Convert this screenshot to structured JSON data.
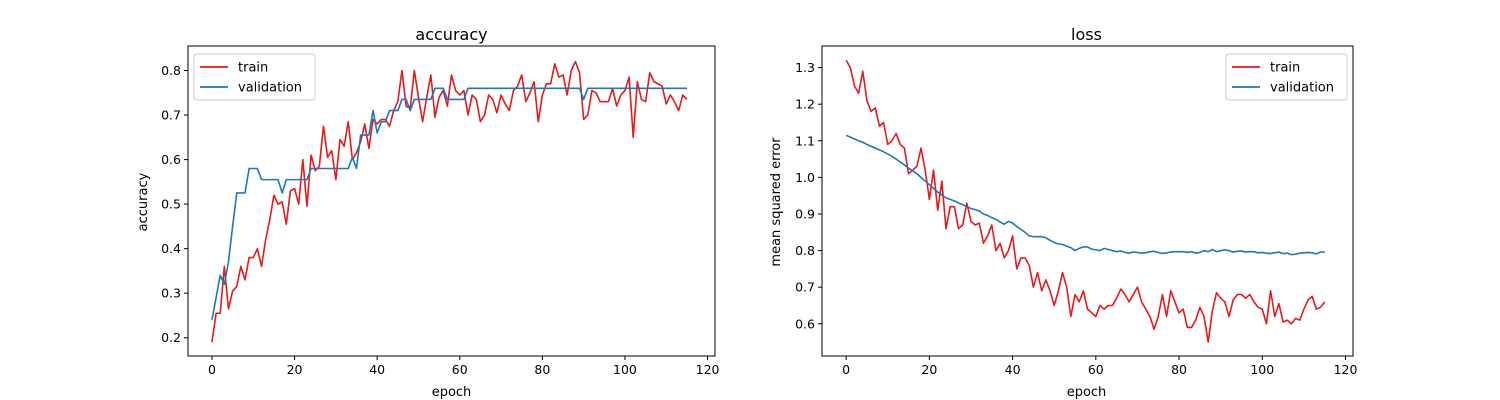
{
  "colors": {
    "train": "#e41a1c",
    "validation": "#1f77b4"
  },
  "chart_data": [
    {
      "type": "line",
      "title": "accuracy",
      "xlabel": "epoch",
      "ylabel": "accuracy",
      "xlim": [
        -5.8,
        121.8
      ],
      "ylim": [
        0.159,
        0.855
      ],
      "xticks": [
        0,
        20,
        40,
        60,
        80,
        100,
        120
      ],
      "yticks": [
        0.2,
        0.3,
        0.4,
        0.5,
        0.6,
        0.7,
        0.8
      ],
      "ytick_labels": [
        "0.2",
        "0.3",
        "0.4",
        "0.5",
        "0.6",
        "0.7",
        "0.8"
      ],
      "legend_position": "upper-left",
      "series": [
        {
          "name": "train",
          "color": "#e41a1c",
          "values": [
            0.19,
            0.255,
            0.255,
            0.36,
            0.265,
            0.305,
            0.315,
            0.36,
            0.33,
            0.38,
            0.38,
            0.4,
            0.36,
            0.42,
            0.465,
            0.52,
            0.5,
            0.505,
            0.455,
            0.53,
            0.535,
            0.5,
            0.6,
            0.495,
            0.61,
            0.575,
            0.585,
            0.675,
            0.605,
            0.62,
            0.555,
            0.645,
            0.63,
            0.685,
            0.6,
            0.615,
            0.64,
            0.68,
            0.625,
            0.69,
            0.68,
            0.69,
            0.69,
            0.675,
            0.71,
            0.73,
            0.8,
            0.72,
            0.715,
            0.8,
            0.74,
            0.685,
            0.74,
            0.79,
            0.695,
            0.74,
            0.755,
            0.72,
            0.79,
            0.755,
            0.745,
            0.755,
            0.7,
            0.745,
            0.735,
            0.685,
            0.7,
            0.745,
            0.735,
            0.705,
            0.745,
            0.725,
            0.71,
            0.755,
            0.765,
            0.79,
            0.73,
            0.75,
            0.775,
            0.685,
            0.745,
            0.77,
            0.77,
            0.815,
            0.785,
            0.79,
            0.745,
            0.8,
            0.82,
            0.795,
            0.69,
            0.7,
            0.755,
            0.75,
            0.73,
            0.73,
            0.73,
            0.76,
            0.72,
            0.745,
            0.755,
            0.785,
            0.65,
            0.775,
            0.735,
            0.73,
            0.795,
            0.775,
            0.77,
            0.765,
            0.725,
            0.745,
            0.73,
            0.71,
            0.745,
            0.735
          ]
        },
        {
          "name": "validation",
          "color": "#1f77b4",
          "values": [
            0.24,
            0.29,
            0.34,
            0.32,
            0.37,
            0.45,
            0.525,
            0.525,
            0.525,
            0.58,
            0.58,
            0.58,
            0.555,
            0.555,
            0.555,
            0.555,
            0.555,
            0.525,
            0.555,
            0.555,
            0.555,
            0.555,
            0.555,
            0.555,
            0.58,
            0.58,
            0.58,
            0.58,
            0.58,
            0.58,
            0.58,
            0.58,
            0.58,
            0.58,
            0.605,
            0.58,
            0.655,
            0.655,
            0.655,
            0.71,
            0.66,
            0.685,
            0.685,
            0.71,
            0.71,
            0.71,
            0.735,
            0.735,
            0.71,
            0.735,
            0.735,
            0.735,
            0.735,
            0.735,
            0.76,
            0.76,
            0.76,
            0.735,
            0.735,
            0.735,
            0.735,
            0.735,
            0.76,
            0.76,
            0.76,
            0.76,
            0.76,
            0.76,
            0.76,
            0.76,
            0.76,
            0.76,
            0.76,
            0.76,
            0.76,
            0.76,
            0.76,
            0.76,
            0.76,
            0.76,
            0.76,
            0.76,
            0.76,
            0.76,
            0.76,
            0.76,
            0.76,
            0.76,
            0.76,
            0.76,
            0.735,
            0.76,
            0.76,
            0.76,
            0.76,
            0.76,
            0.76,
            0.76,
            0.76,
            0.76,
            0.76,
            0.76,
            0.76,
            0.76,
            0.76,
            0.76,
            0.76,
            0.76,
            0.76,
            0.76,
            0.76,
            0.76,
            0.76,
            0.76,
            0.76,
            0.76
          ]
        }
      ]
    },
    {
      "type": "line",
      "title": "loss",
      "xlabel": "epoch",
      "ylabel": "mean squared error",
      "xlim": [
        -5.8,
        121.8
      ],
      "ylim": [
        0.512,
        1.359
      ],
      "xticks": [
        0,
        20,
        40,
        60,
        80,
        100,
        120
      ],
      "yticks": [
        0.6,
        0.7,
        0.8,
        0.9,
        1.0,
        1.1,
        1.2,
        1.3
      ],
      "ytick_labels": [
        "0.6",
        "0.7",
        "0.8",
        "0.9",
        "1.0",
        "1.1",
        "1.2",
        "1.3"
      ],
      "legend_position": "upper-right",
      "series": [
        {
          "name": "train",
          "color": "#e41a1c",
          "values": [
            1.32,
            1.3,
            1.25,
            1.23,
            1.29,
            1.21,
            1.18,
            1.19,
            1.14,
            1.15,
            1.09,
            1.1,
            1.12,
            1.09,
            1.08,
            1.01,
            1.02,
            1.03,
            1.08,
            1.02,
            0.94,
            1.02,
            0.91,
            0.99,
            0.86,
            0.92,
            0.92,
            0.86,
            0.87,
            0.93,
            0.88,
            0.87,
            0.875,
            0.82,
            0.84,
            0.87,
            0.8,
            0.82,
            0.78,
            0.8,
            0.84,
            0.75,
            0.78,
            0.78,
            0.76,
            0.7,
            0.74,
            0.69,
            0.72,
            0.69,
            0.65,
            0.69,
            0.74,
            0.7,
            0.62,
            0.68,
            0.66,
            0.69,
            0.64,
            0.63,
            0.62,
            0.65,
            0.64,
            0.65,
            0.65,
            0.67,
            0.695,
            0.68,
            0.66,
            0.68,
            0.7,
            0.66,
            0.64,
            0.62,
            0.585,
            0.62,
            0.68,
            0.62,
            0.69,
            0.66,
            0.63,
            0.64,
            0.59,
            0.59,
            0.61,
            0.645,
            0.62,
            0.55,
            0.635,
            0.685,
            0.67,
            0.66,
            0.62,
            0.665,
            0.68,
            0.68,
            0.67,
            0.68,
            0.66,
            0.645,
            0.64,
            0.6,
            0.69,
            0.62,
            0.655,
            0.605,
            0.61,
            0.6,
            0.615,
            0.61,
            0.64,
            0.665,
            0.675,
            0.64,
            0.645,
            0.66
          ]
        },
        {
          "name": "validation",
          "color": "#1f77b4",
          "values": [
            1.115,
            1.11,
            1.105,
            1.1,
            1.096,
            1.09,
            1.085,
            1.08,
            1.075,
            1.07,
            1.064,
            1.058,
            1.05,
            1.042,
            1.034,
            1.025,
            1.018,
            1.01,
            1.0,
            0.99,
            0.98,
            0.97,
            0.96,
            0.952,
            0.944,
            0.94,
            0.936,
            0.93,
            0.926,
            0.92,
            0.915,
            0.912,
            0.908,
            0.9,
            0.896,
            0.89,
            0.885,
            0.878,
            0.872,
            0.88,
            0.875,
            0.866,
            0.858,
            0.85,
            0.84,
            0.838,
            0.838,
            0.838,
            0.835,
            0.828,
            0.822,
            0.818,
            0.817,
            0.812,
            0.808,
            0.8,
            0.806,
            0.81,
            0.81,
            0.804,
            0.802,
            0.8,
            0.806,
            0.803,
            0.8,
            0.797,
            0.799,
            0.795,
            0.793,
            0.796,
            0.795,
            0.793,
            0.794,
            0.797,
            0.798,
            0.795,
            0.792,
            0.794,
            0.796,
            0.797,
            0.797,
            0.797,
            0.795,
            0.797,
            0.793,
            0.795,
            0.8,
            0.797,
            0.803,
            0.797,
            0.8,
            0.802,
            0.8,
            0.796,
            0.798,
            0.799,
            0.796,
            0.797,
            0.797,
            0.794,
            0.795,
            0.793,
            0.792,
            0.794,
            0.796,
            0.792,
            0.793,
            0.789,
            0.79,
            0.793,
            0.794,
            0.795,
            0.794,
            0.791,
            0.796,
            0.796
          ]
        }
      ]
    }
  ]
}
